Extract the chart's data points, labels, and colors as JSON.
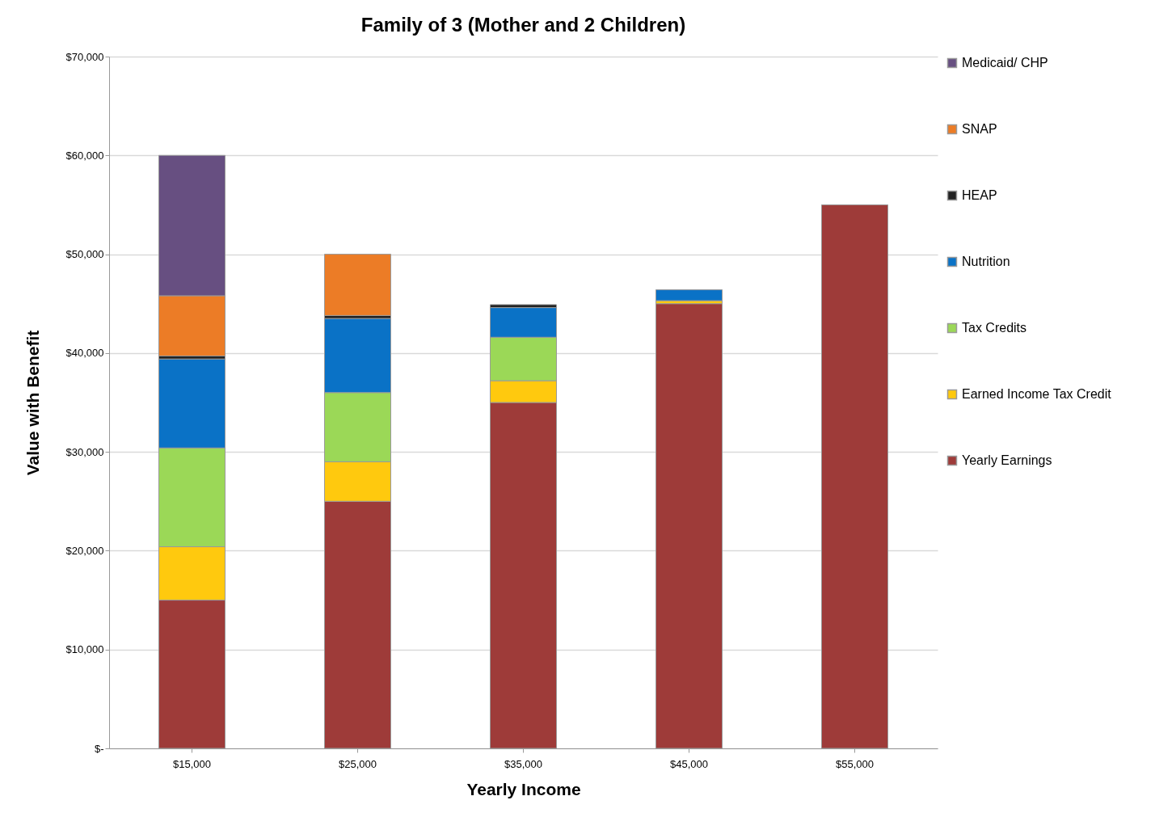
{
  "chart_data": {
    "type": "bar",
    "stacked": true,
    "title": "Family of 3 (Mother and 2 Children)",
    "xlabel": "Yearly Income",
    "ylabel": "Value with Benefit",
    "categories": [
      "$15,000",
      "$25,000",
      "$35,000",
      "$45,000",
      "$55,000"
    ],
    "series": [
      {
        "name": "Yearly Earnings",
        "color": "#9e3b39",
        "values": [
          15000,
          25000,
          35000,
          45000,
          55000
        ]
      },
      {
        "name": "Earned Income Tax Credit",
        "color": "#ffc90e",
        "values": [
          5400,
          4000,
          2200,
          300,
          null
        ]
      },
      {
        "name": "Tax Credits",
        "color": "#9bd857",
        "values": [
          10000,
          7000,
          4400,
          null,
          null
        ]
      },
      {
        "name": "Nutrition",
        "color": "#0a72c6",
        "values": [
          9000,
          7500,
          3000,
          1100,
          null
        ]
      },
      {
        "name": "HEAP",
        "color": "#222222",
        "values": [
          300,
          300,
          300,
          null,
          null
        ]
      },
      {
        "name": "SNAP",
        "color": "#ec7c26",
        "values": [
          6100,
          6200,
          null,
          null,
          null
        ]
      },
      {
        "name": "Medicaid/ CHP",
        "color": "#674f81",
        "values": [
          14200,
          null,
          null,
          null,
          null
        ]
      }
    ],
    "ylim": [
      0,
      70000
    ],
    "yticks": [
      {
        "value": 0,
        "label": "$-"
      },
      {
        "value": 10000,
        "label": "$10,000"
      },
      {
        "value": 20000,
        "label": "$20,000"
      },
      {
        "value": 30000,
        "label": "$30,000"
      },
      {
        "value": 40000,
        "label": "$40,000"
      },
      {
        "value": 50000,
        "label": "$50,000"
      },
      {
        "value": 60000,
        "label": "$60,000"
      },
      {
        "value": 70000,
        "label": "$70,000"
      }
    ],
    "grid": "y",
    "legend": "right"
  }
}
